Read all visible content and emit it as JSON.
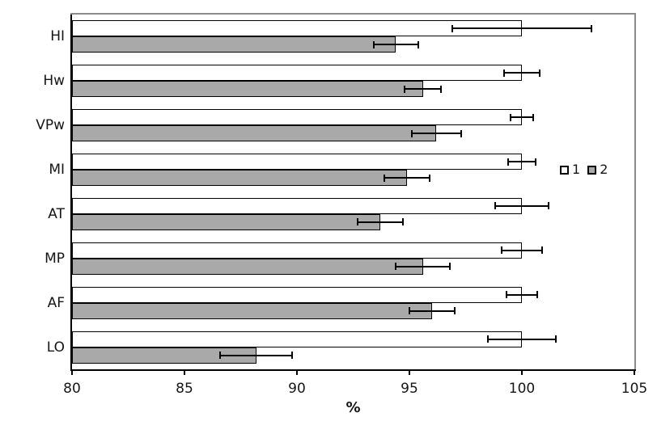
{
  "chart_data": {
    "type": "bar",
    "orientation": "horizontal",
    "title": "",
    "xlabel": "%",
    "ylabel": "",
    "xlim": [
      80,
      105
    ],
    "xticks": [
      "80",
      "85",
      "90",
      "95",
      "100",
      "105"
    ],
    "grid": false,
    "legend_position": "middle-right",
    "categories": [
      "HI",
      "Hw",
      "VPw",
      "MI",
      "AT",
      "MP",
      "AF",
      "LO"
    ],
    "series": [
      {
        "name": "1",
        "color": "#ffffff",
        "values": [
          100,
          100,
          100,
          100,
          100,
          100,
          100,
          100
        ],
        "errors": [
          3.1,
          0.8,
          0.5,
          0.6,
          1.2,
          0.9,
          0.7,
          1.5
        ]
      },
      {
        "name": "2",
        "color": "#a9a9a9",
        "values": [
          94.4,
          95.6,
          96.2,
          94.9,
          93.7,
          95.6,
          96.0,
          88.2
        ],
        "errors": [
          1.0,
          0.8,
          1.1,
          1.0,
          1.0,
          1.2,
          1.0,
          1.6
        ]
      }
    ]
  },
  "colors": {
    "bar_border": "#000000",
    "axis": "#000000",
    "frame": "#8c8c8c",
    "series1_fill": "#ffffff",
    "series2_fill": "#a9a9a9"
  }
}
